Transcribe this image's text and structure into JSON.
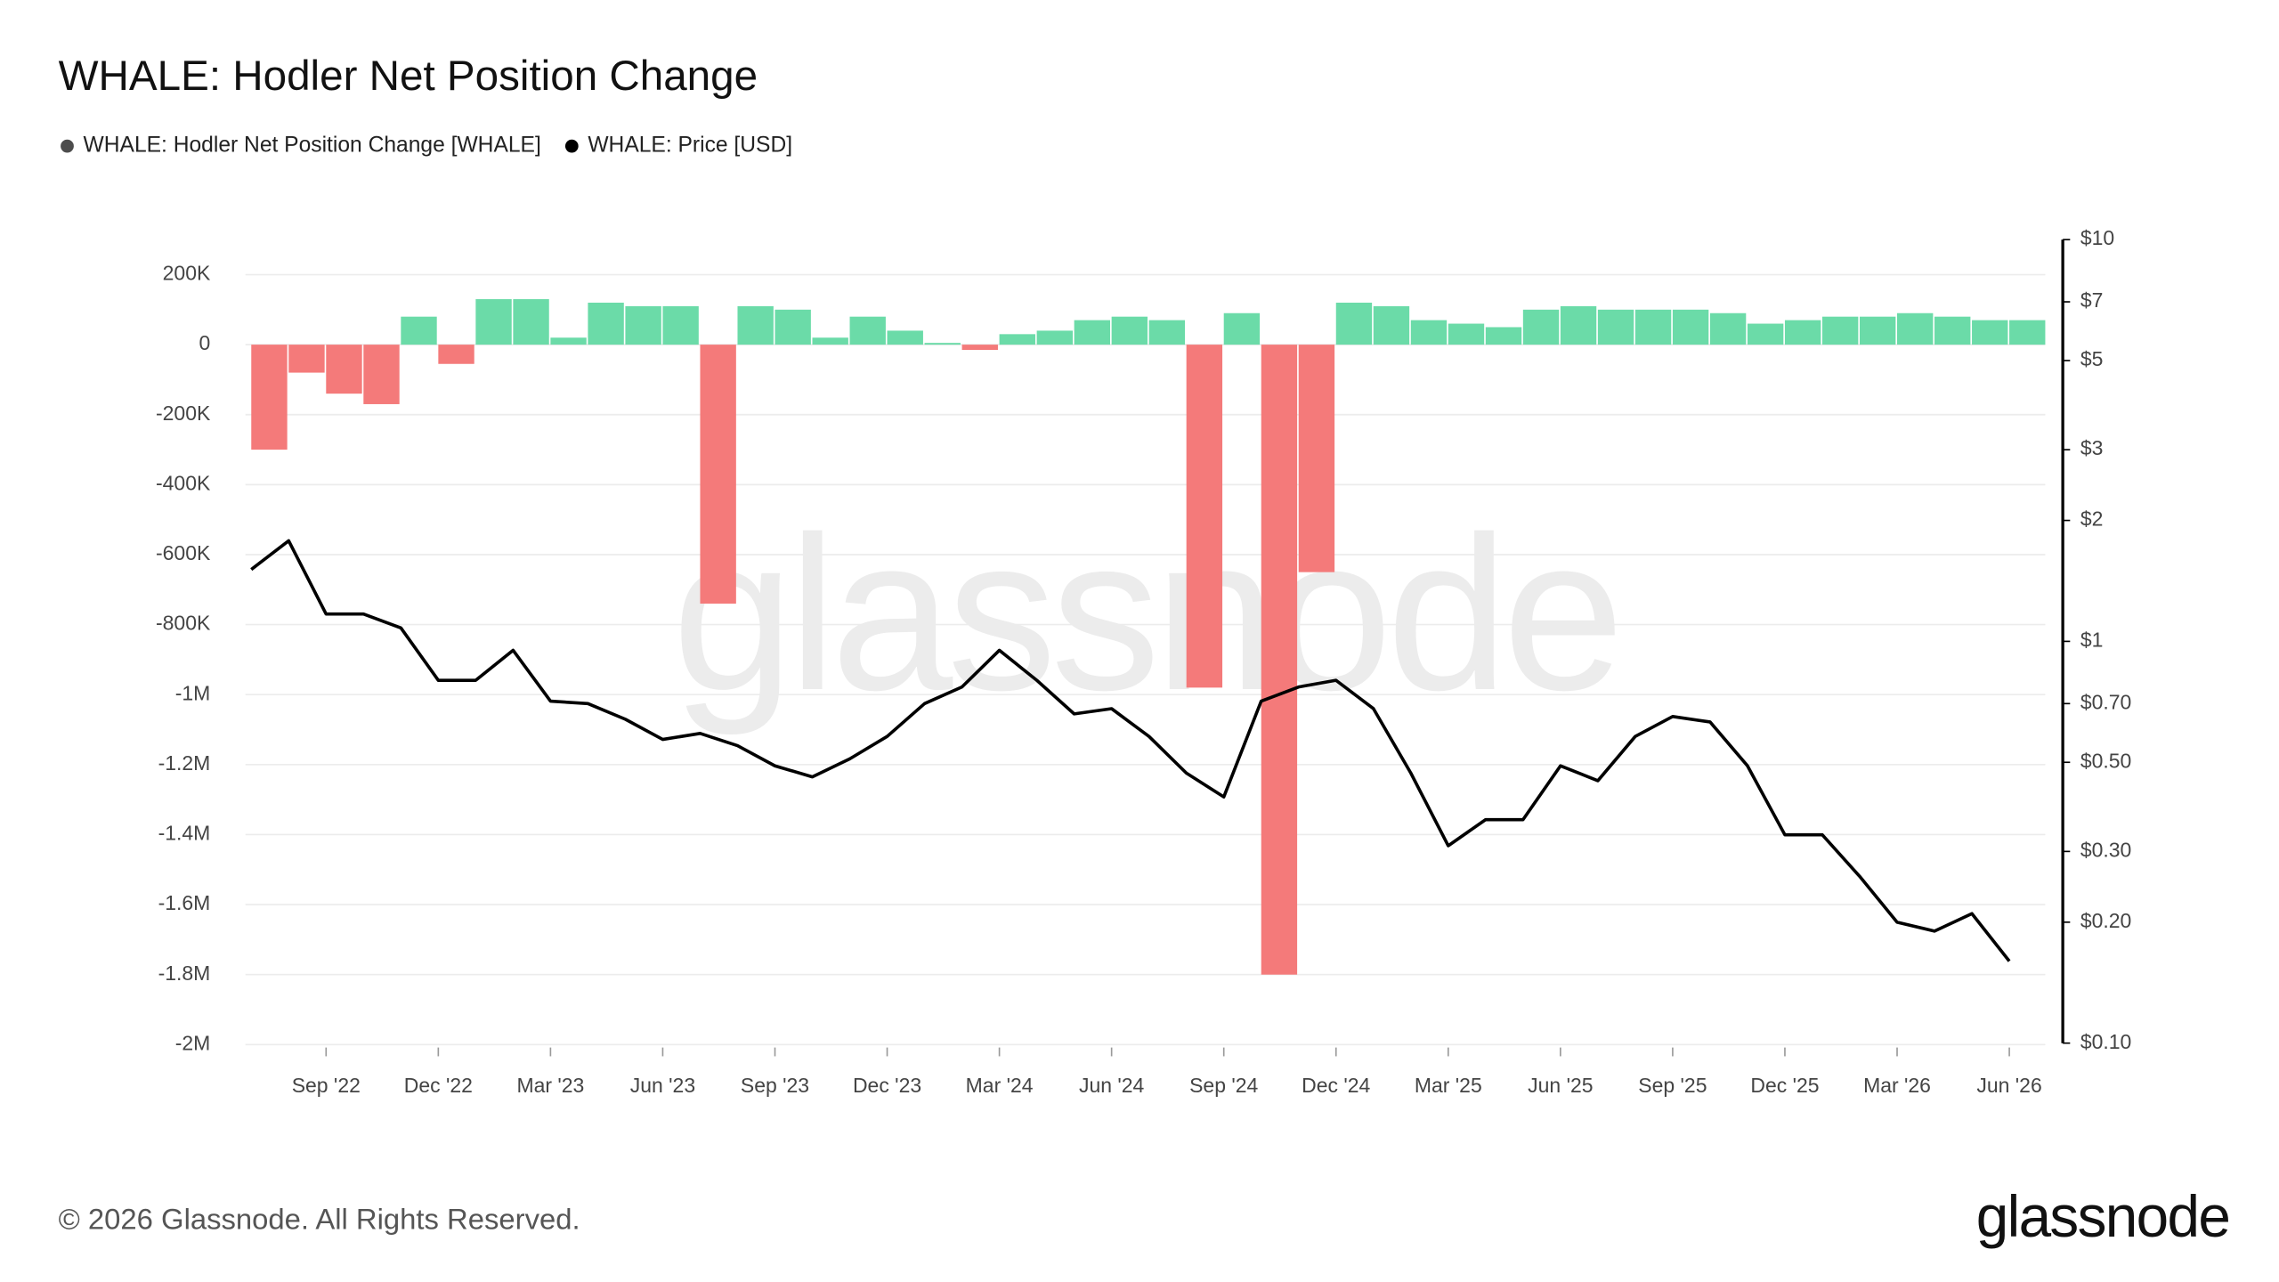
{
  "chart_data": {
    "type": "combo",
    "title": "WHALE: Hodler Net Position Change",
    "footer": "© 2026 Glassnode. All Rights Reserved.",
    "brand": "glassnode",
    "x": [
      "2022-07",
      "2022-08",
      "2022-09",
      "2022-10",
      "2022-11",
      "2022-12",
      "2023-01",
      "2023-02",
      "2023-03",
      "2023-04",
      "2023-05",
      "2023-06",
      "2023-07",
      "2023-08",
      "2023-09",
      "2023-10",
      "2023-11",
      "2023-12",
      "2024-01",
      "2024-02",
      "2024-03",
      "2024-04",
      "2024-05",
      "2024-06",
      "2024-07",
      "2024-08",
      "2024-09",
      "2024-10",
      "2024-11",
      "2024-12",
      "2025-01",
      "2025-02",
      "2025-03",
      "2025-04",
      "2025-05",
      "2025-06",
      "2025-07",
      "2025-08",
      "2025-09",
      "2025-10",
      "2025-11",
      "2025-12",
      "2026-01",
      "2026-02",
      "2026-03",
      "2026-04",
      "2026-05",
      "2026-06"
    ],
    "series": [
      {
        "name": "WHALE: Hodler Net Position Change [WHALE]",
        "type": "bar",
        "color": "#4d4d4d",
        "positive_color": "#6bdba8",
        "negative_color": "#f47a7a",
        "values": [
          -300000,
          -80000,
          -140000,
          -170000,
          80000,
          -55000,
          130000,
          130000,
          20000,
          120000,
          110000,
          110000,
          -740000,
          110000,
          100000,
          20000,
          80000,
          40000,
          5000,
          -15000,
          30000,
          40000,
          70000,
          80000,
          70000,
          -980000,
          90000,
          -1800000,
          -650000,
          120000,
          110000,
          70000,
          60000,
          50000,
          100000,
          110000,
          100000,
          100000,
          100000,
          90000,
          60000,
          70000,
          80000,
          80000,
          90000,
          80000,
          70000,
          70000
        ]
      },
      {
        "name": "WHALE: Price [USD]",
        "type": "line",
        "axis": "y2",
        "color": "#000000",
        "values": [
          1.51,
          1.78,
          1.17,
          1.17,
          1.08,
          0.8,
          0.8,
          0.95,
          0.71,
          0.7,
          0.64,
          0.57,
          0.59,
          0.55,
          0.49,
          0.46,
          0.51,
          0.58,
          0.7,
          0.77,
          0.95,
          0.8,
          0.66,
          0.68,
          0.58,
          0.47,
          0.41,
          0.71,
          0.77,
          0.8,
          0.68,
          0.47,
          0.31,
          0.36,
          0.36,
          0.49,
          0.45,
          0.58,
          0.65,
          0.63,
          0.49,
          0.33,
          0.33,
          0.26,
          0.2,
          0.19,
          0.21,
          0.16
        ]
      }
    ],
    "xlim": [
      "2022-07",
      "2026-07"
    ],
    "xticks": [
      {
        "value": "2022-09",
        "label": "Sep '22"
      },
      {
        "value": "2022-12",
        "label": "Dec '22"
      },
      {
        "value": "2023-03",
        "label": "Mar '23"
      },
      {
        "value": "2023-06",
        "label": "Jun '23"
      },
      {
        "value": "2023-09",
        "label": "Sep '23"
      },
      {
        "value": "2023-12",
        "label": "Dec '23"
      },
      {
        "value": "2024-03",
        "label": "Mar '24"
      },
      {
        "value": "2024-06",
        "label": "Jun '24"
      },
      {
        "value": "2024-09",
        "label": "Sep '24"
      },
      {
        "value": "2024-12",
        "label": "Dec '24"
      },
      {
        "value": "2025-03",
        "label": "Mar '25"
      },
      {
        "value": "2025-06",
        "label": "Jun '25"
      },
      {
        "value": "2025-09",
        "label": "Sep '25"
      },
      {
        "value": "2025-12",
        "label": "Dec '25"
      },
      {
        "value": "2026-03",
        "label": "Mar '26"
      },
      {
        "value": "2026-06",
        "label": "Jun '26"
      }
    ],
    "ylim": [
      -2000000,
      200000
    ],
    "yticks": [
      {
        "value": 200000,
        "label": "200K"
      },
      0,
      {
        "value": -200000,
        "label": "-200K"
      },
      {
        "value": -400000,
        "label": "-400K"
      },
      {
        "value": -600000,
        "label": "-600K"
      },
      {
        "value": -800000,
        "label": "-800K"
      },
      {
        "value": -1000000,
        "label": "-1M"
      },
      {
        "value": -1200000,
        "label": "-1.2M"
      },
      {
        "value": -1400000,
        "label": "-1.4M"
      },
      {
        "value": -1600000,
        "label": "-1.6M"
      },
      {
        "value": -1800000,
        "label": "-1.8M"
      },
      {
        "value": -2000000,
        "label": "-2M"
      }
    ],
    "y2lim": [
      0.1,
      10
    ],
    "y2log": true,
    "y2ticks": [
      {
        "value": 10,
        "label": "$10"
      },
      {
        "value": 7,
        "label": "$7"
      },
      {
        "value": 5,
        "label": "$5"
      },
      {
        "value": 3,
        "label": "$3"
      },
      {
        "value": 2,
        "label": "$2"
      },
      {
        "value": 1,
        "label": "$1"
      },
      {
        "value": 0.7,
        "label": "$0.70"
      },
      {
        "value": 0.5,
        "label": "$0.50"
      },
      {
        "value": 0.3,
        "label": "$0.30"
      },
      {
        "value": 0.2,
        "label": "$0.20"
      },
      {
        "value": 0.1,
        "label": "$0.10"
      }
    ],
    "grid": true
  }
}
